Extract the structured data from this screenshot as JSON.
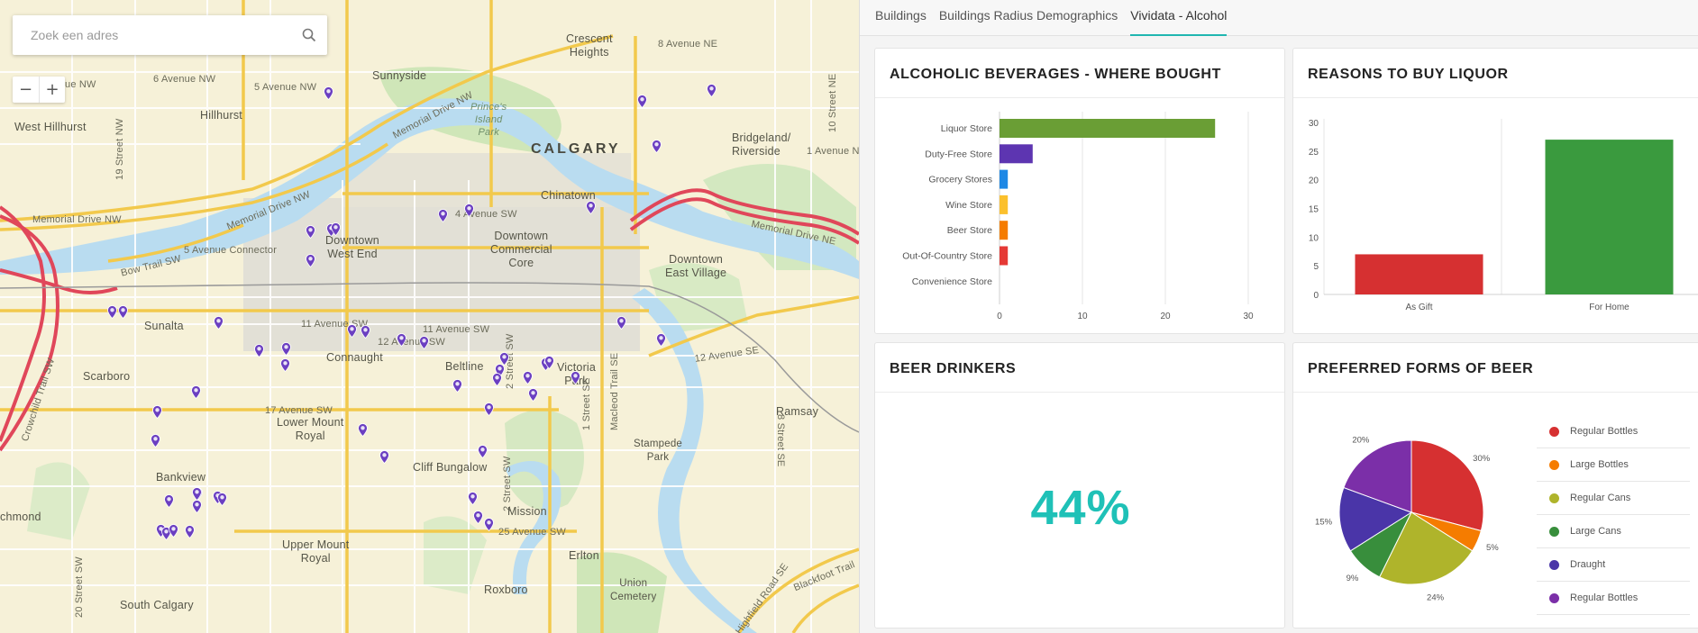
{
  "search": {
    "placeholder": "Zoek een adres"
  },
  "zoom": {
    "out": "−",
    "in": "+"
  },
  "map": {
    "labels": {
      "crescent_heights": "Crescent\nHeights",
      "ave8ne": "8 Avenue NE",
      "sunnyside": "Sunnyside",
      "ave6nw": "6 Avenue NW",
      "ave5nw": "5 Avenue NW",
      "ave_nw_partial": "ue NW",
      "hillhurst": "Hillhurst",
      "west_hillhurst": "West Hillhurst",
      "memorial_drive_nw_top": "Memorial Drive NW",
      "princes_island_park": "Prince's\nIsland\nPark",
      "calgary": "CALGARY",
      "bridgeland": "Bridgeland/\nRiverside",
      "ave1ne": "1 Avenue N",
      "memorial_drive_nw_mid": "Memorial Drive NW",
      "memorial_drive_nw_left": "Memorial Drive NW",
      "chinatown": "Chinatown",
      "ave4sw": "4 Avenue SW",
      "downtown_west_end": "Downtown\nWest End",
      "downtown_commercial_core": "Downtown\nCommercial\nCore",
      "bow_trail_sw": "Bow Trail SW",
      "ave5_connector": "5 Avenue Connector",
      "downtown_east_village": "Downtown\nEast Village",
      "memorial_drive_ne": "Memorial Drive NE",
      "sunalta": "Sunalta",
      "ave11sw_a": "11 Avenue SW",
      "ave11sw_b": "11 Avenue SW",
      "ave12sw": "12 Avenue SW",
      "ave12se": "12 Avenue SE",
      "connaught": "Connaught",
      "beltline": "Beltline",
      "victoria_park": "Victoria\nPark",
      "scarboro": "Scarboro",
      "crowchild_trail_sw": "Crowchild Trail SW",
      "ave17sw": "17 Avenue SW",
      "lower_mount_royal": "Lower Mount\nRoyal",
      "ramsay": "Ramsay",
      "bankview": "Bankview",
      "cliff_bungalow": "Cliff Bungalow",
      "stampede_park": "Stampede\nPark",
      "mission": "Mission",
      "ave25sw": "25 Avenue SW",
      "upper_mount_royal": "Upper Mount\nRoyal",
      "erlton": "Erlton",
      "roxboro": "Roxboro",
      "union_cemetery": "Union\nCemetery",
      "south_calgary": "South Calgary",
      "richmond": "chmond",
      "street19nw": "19 Street NW",
      "street10ne": "10 Street NE",
      "street8se": "8 Street SE",
      "street2sw_a": "2 Street SW",
      "street2sw_b": "2 Street SW",
      "street1se": "1 Street SE",
      "macleod_trail": "Macleod Trail SE",
      "street20sw": "20 Street SW",
      "highfield_rd": "Highfield Road SE",
      "blackfoot_trail": "Blackfoot Trail"
    }
  },
  "tabs": [
    {
      "label": "Buildings",
      "active": false
    },
    {
      "label": "Buildings Radius Demographics",
      "active": false
    },
    {
      "label": "Vividata - Alcohol",
      "active": true
    }
  ],
  "cards": {
    "where_bought": {
      "title": "ALCOHOLIC BEVERAGES - WHERE BOUGHT"
    },
    "reasons": {
      "title": "REASONS TO BUY LIQUOR"
    },
    "beer_drinkers": {
      "title": "BEER DRINKERS",
      "value": "44%"
    },
    "forms": {
      "title": "PREFERRED FORMS OF BEER"
    }
  },
  "chart_data": [
    {
      "type": "bar",
      "orientation": "horizontal",
      "title": "ALCOHOLIC BEVERAGES - WHERE BOUGHT",
      "categories": [
        "Liquor Store",
        "Duty-Free Store",
        "Grocery Stores",
        "Wine Store",
        "Beer Store",
        "Out-Of-Country Store",
        "Convenience Store"
      ],
      "values": [
        26,
        4,
        1,
        1,
        1,
        1,
        0
      ],
      "colors": [
        "#6a9e35",
        "#5d35b1",
        "#1e88e5",
        "#fbc02d",
        "#f57c00",
        "#e53935",
        "#9e9e9e"
      ],
      "xlim": [
        0,
        30
      ],
      "xticks": [
        0,
        10,
        20,
        30
      ],
      "grid": true
    },
    {
      "type": "bar",
      "title": "REASONS TO BUY LIQUOR",
      "categories": [
        "As Gift",
        "For Home"
      ],
      "values": [
        7,
        27
      ],
      "colors": [
        "#d63031",
        "#3a9a3e"
      ],
      "ylim": [
        0,
        30
      ],
      "yticks": [
        0,
        5,
        10,
        15,
        20,
        25,
        30
      ],
      "grid": true
    },
    {
      "type": "pie",
      "title": "PREFERRED FORMS OF BEER",
      "slices": [
        {
          "label": "Regular Bottles",
          "value": 30,
          "display": "30%",
          "color": "#d63031"
        },
        {
          "label": "Large Bottles",
          "value": 5,
          "display": "5%",
          "color": "#f57c00"
        },
        {
          "label": "Regular Cans",
          "value": 24,
          "display": "24%",
          "color": "#afb42b"
        },
        {
          "label": "Large Cans",
          "value": 9,
          "display": "9%",
          "color": "#388e3c"
        },
        {
          "label": "Draught",
          "value": 15,
          "display": "15%",
          "color": "#4a35a8"
        },
        {
          "label": "Regular Bottles",
          "value": 20,
          "display": "20%",
          "color": "#7b2fa8"
        }
      ],
      "legend_position": "right"
    }
  ]
}
